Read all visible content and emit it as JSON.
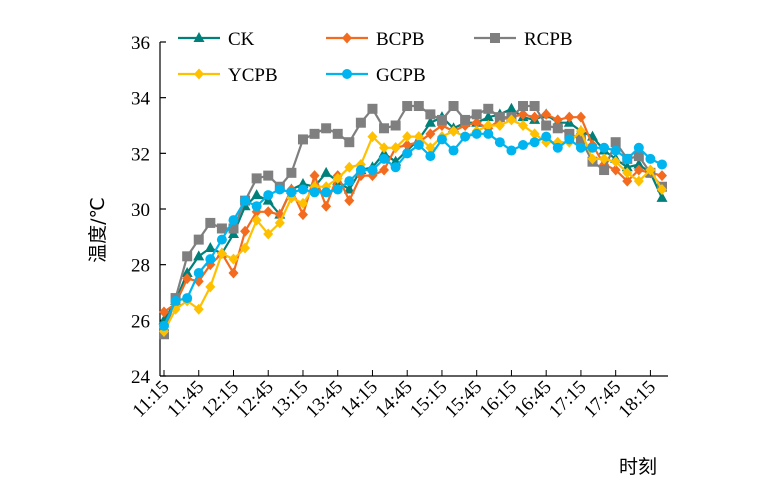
{
  "chart_data": {
    "type": "line",
    "xlabel": "时刻",
    "ylabel": "温度/℃",
    "ylim": [
      24,
      36
    ],
    "yticks": [
      24,
      26,
      28,
      30,
      32,
      34,
      36
    ],
    "x_tick_labels": [
      "11:15",
      "11:45",
      "12:15",
      "12:45",
      "13:15",
      "13:45",
      "14:15",
      "14:45",
      "15:15",
      "15:45",
      "16:15",
      "16:45",
      "17:15",
      "17:45",
      "18:15"
    ],
    "grid": false,
    "legend_position": "top",
    "x_count": 44,
    "series": [
      {
        "name": "CK",
        "color": "#00807a",
        "marker": "triangle",
        "values": [
          26.0,
          26.7,
          27.7,
          28.3,
          28.6,
          28.4,
          29.1,
          30.1,
          30.5,
          30.3,
          29.8,
          30.7,
          30.9,
          30.8,
          31.3,
          31.0,
          30.7,
          31.4,
          31.5,
          32.0,
          31.7,
          32.1,
          32.5,
          33.1,
          33.3,
          32.9,
          33.1,
          33.1,
          33.3,
          33.4,
          33.6,
          33.3,
          33.2,
          33.4,
          33.1,
          33.1,
          32.8,
          32.6,
          32.1,
          31.8,
          31.5,
          31.6,
          31.3,
          30.4
        ]
      },
      {
        "name": "BCPB",
        "color": "#f26b1f",
        "marker": "diamond",
        "values": [
          26.3,
          26.6,
          27.5,
          27.4,
          28.0,
          28.4,
          27.7,
          29.2,
          29.9,
          29.9,
          29.8,
          30.7,
          29.8,
          31.2,
          30.1,
          31.2,
          30.3,
          31.2,
          31.2,
          31.4,
          32.2,
          32.3,
          32.4,
          32.7,
          33.0,
          32.8,
          33.0,
          33.1,
          32.9,
          33.2,
          33.3,
          33.4,
          33.3,
          33.4,
          33.2,
          33.3,
          33.3,
          32.3,
          31.6,
          31.4,
          31.0,
          31.4,
          31.3,
          31.2
        ]
      },
      {
        "name": "RCPB",
        "color": "#7f7f7f",
        "marker": "square",
        "values": [
          25.5,
          26.8,
          28.3,
          28.9,
          29.5,
          29.3,
          29.3,
          30.3,
          31.1,
          31.2,
          30.8,
          31.3,
          32.5,
          32.7,
          32.9,
          32.7,
          32.4,
          33.1,
          33.6,
          32.9,
          33.0,
          33.7,
          33.7,
          33.4,
          33.2,
          33.7,
          33.2,
          33.4,
          33.6,
          33.3,
          33.3,
          33.7,
          33.7,
          33.0,
          32.9,
          32.7,
          32.5,
          31.7,
          31.4,
          32.4,
          31.8,
          31.9,
          31.3,
          30.8
        ]
      },
      {
        "name": "YCPB",
        "color": "#ffc000",
        "marker": "diamond",
        "values": [
          25.6,
          26.4,
          26.7,
          26.4,
          27.2,
          28.4,
          28.2,
          28.6,
          29.6,
          29.1,
          29.5,
          30.4,
          30.2,
          30.8,
          30.8,
          31.1,
          31.5,
          31.6,
          32.6,
          32.2,
          32.2,
          32.6,
          32.6,
          32.2,
          32.6,
          32.8,
          32.6,
          32.8,
          33.0,
          33.0,
          33.2,
          33.0,
          32.7,
          32.4,
          32.4,
          32.4,
          32.8,
          31.8,
          31.8,
          31.7,
          31.3,
          31.0,
          31.4,
          30.7
        ]
      },
      {
        "name": "GCPB",
        "color": "#00b4ef",
        "marker": "circle",
        "values": [
          25.8,
          26.7,
          26.8,
          27.7,
          28.2,
          28.9,
          29.6,
          30.3,
          30.1,
          30.5,
          30.7,
          30.6,
          30.7,
          30.6,
          30.6,
          30.7,
          31.0,
          31.4,
          31.4,
          31.8,
          31.5,
          32.0,
          32.3,
          31.9,
          32.5,
          32.1,
          32.6,
          32.7,
          32.7,
          32.4,
          32.1,
          32.3,
          32.4,
          32.6,
          32.2,
          32.5,
          32.2,
          32.2,
          32.2,
          32.1,
          31.8,
          32.2,
          31.8,
          31.6
        ]
      }
    ]
  }
}
